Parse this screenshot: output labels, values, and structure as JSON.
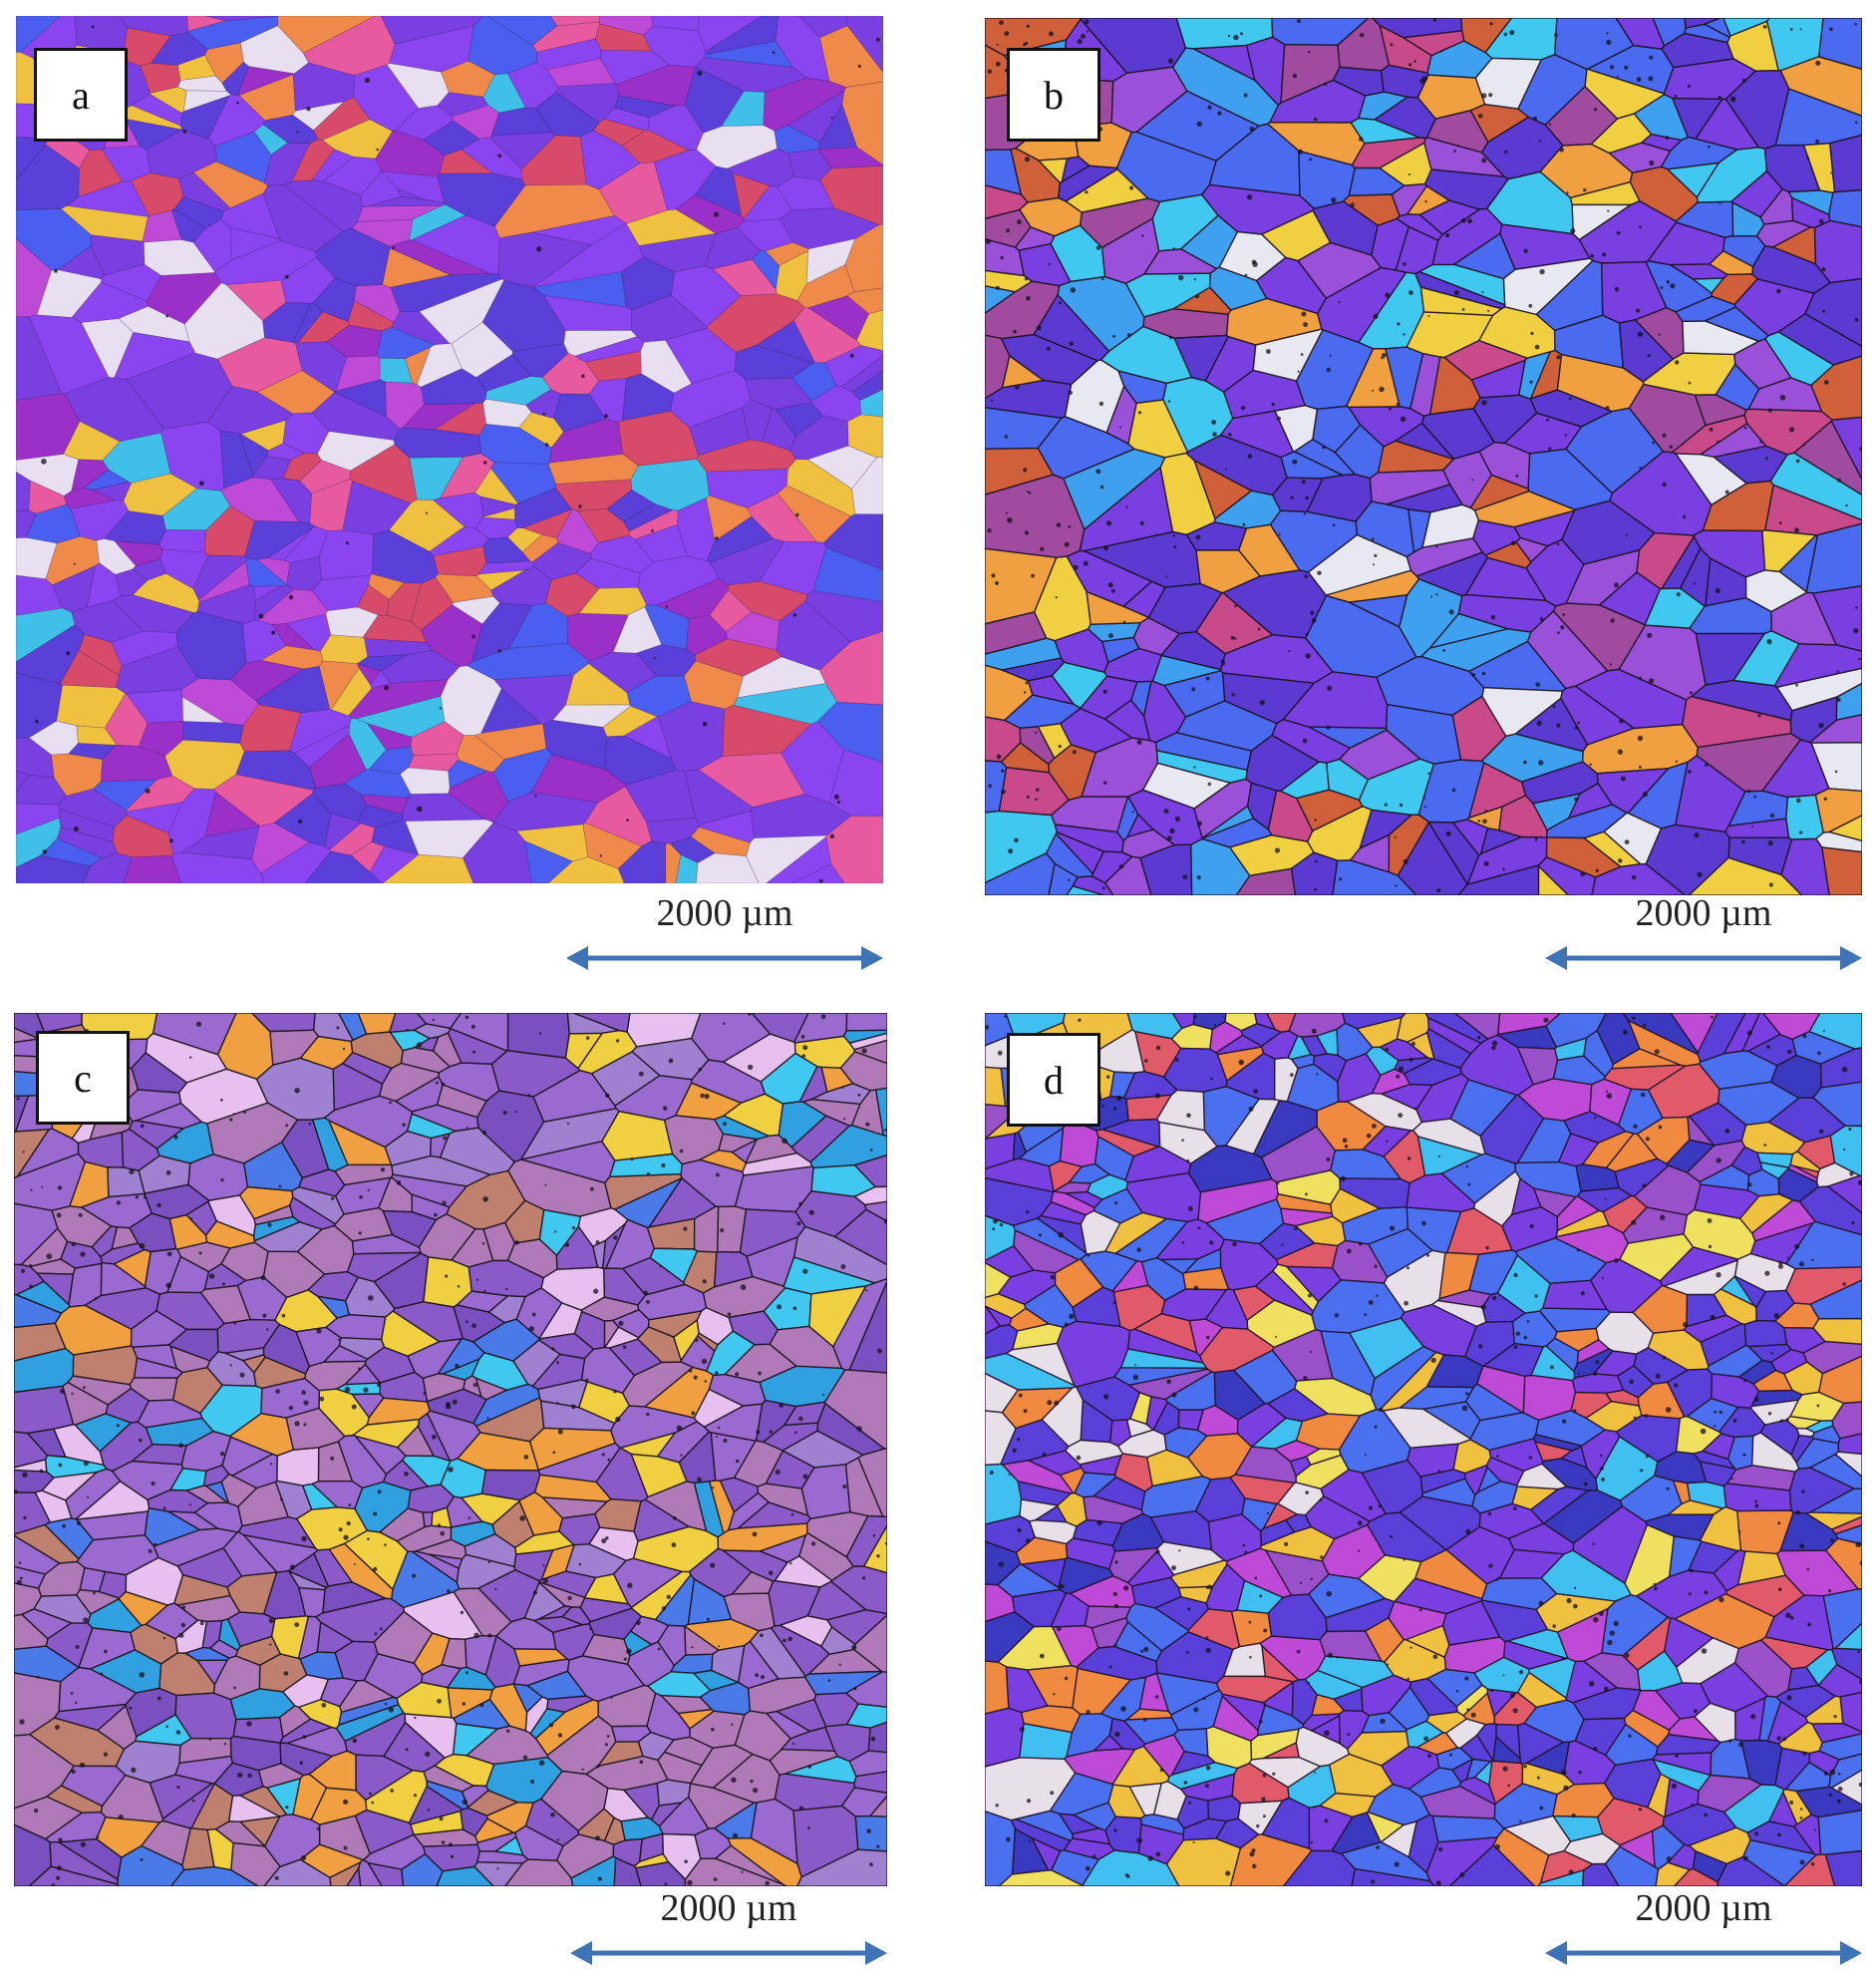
{
  "figure": {
    "panels": [
      {
        "label": "a",
        "scale_text": "2000 µm",
        "palette": [
          "#7a3fe0",
          "#8b45f0",
          "#5a3fd8",
          "#4a5ef0",
          "#c04ad8",
          "#e85aa0",
          "#f08a4a",
          "#f0c040",
          "#40c0e8",
          "#e8e0f0",
          "#d84a6a",
          "#9a30c8"
        ],
        "grain_count": 520,
        "seed": 11,
        "boundary_color": "#2a1a40"
      },
      {
        "label": "b",
        "scale_text": "2000 µm",
        "palette": [
          "#7a3fe0",
          "#5a3ad0",
          "#4a6af0",
          "#40c8f0",
          "#f0a040",
          "#f0d040",
          "#d0603a",
          "#c84a8a",
          "#9a50d8",
          "#e8e8f0",
          "#40a0f0",
          "#a04aa0"
        ],
        "grain_count": 420,
        "seed": 23,
        "boundary_color": "#1a1020"
      },
      {
        "label": "c",
        "scale_text": "2000 µm",
        "palette": [
          "#9a6ad0",
          "#8a5ac8",
          "#b07ab8",
          "#40c8f0",
          "#f0d040",
          "#f0a040",
          "#4a7ae8",
          "#c08070",
          "#7a50c0",
          "#e8c0f0",
          "#30a0e0",
          "#a080d0"
        ],
        "grain_count": 680,
        "seed": 37,
        "boundary_color": "#181018"
      },
      {
        "label": "d",
        "scale_text": "2000 µm",
        "palette": [
          "#7a3fe0",
          "#5a40d8",
          "#4a70f0",
          "#40c0f0",
          "#f0c040",
          "#f08a40",
          "#e05a6a",
          "#c04ad8",
          "#e8e0e8",
          "#9a50c8",
          "#f0e060",
          "#3a3ac0"
        ],
        "grain_count": 700,
        "seed": 53,
        "boundary_color": "#201028"
      }
    ],
    "colors": {
      "arrow": "#3e73b6",
      "label_border": "#111111",
      "background": "#ffffff"
    }
  }
}
